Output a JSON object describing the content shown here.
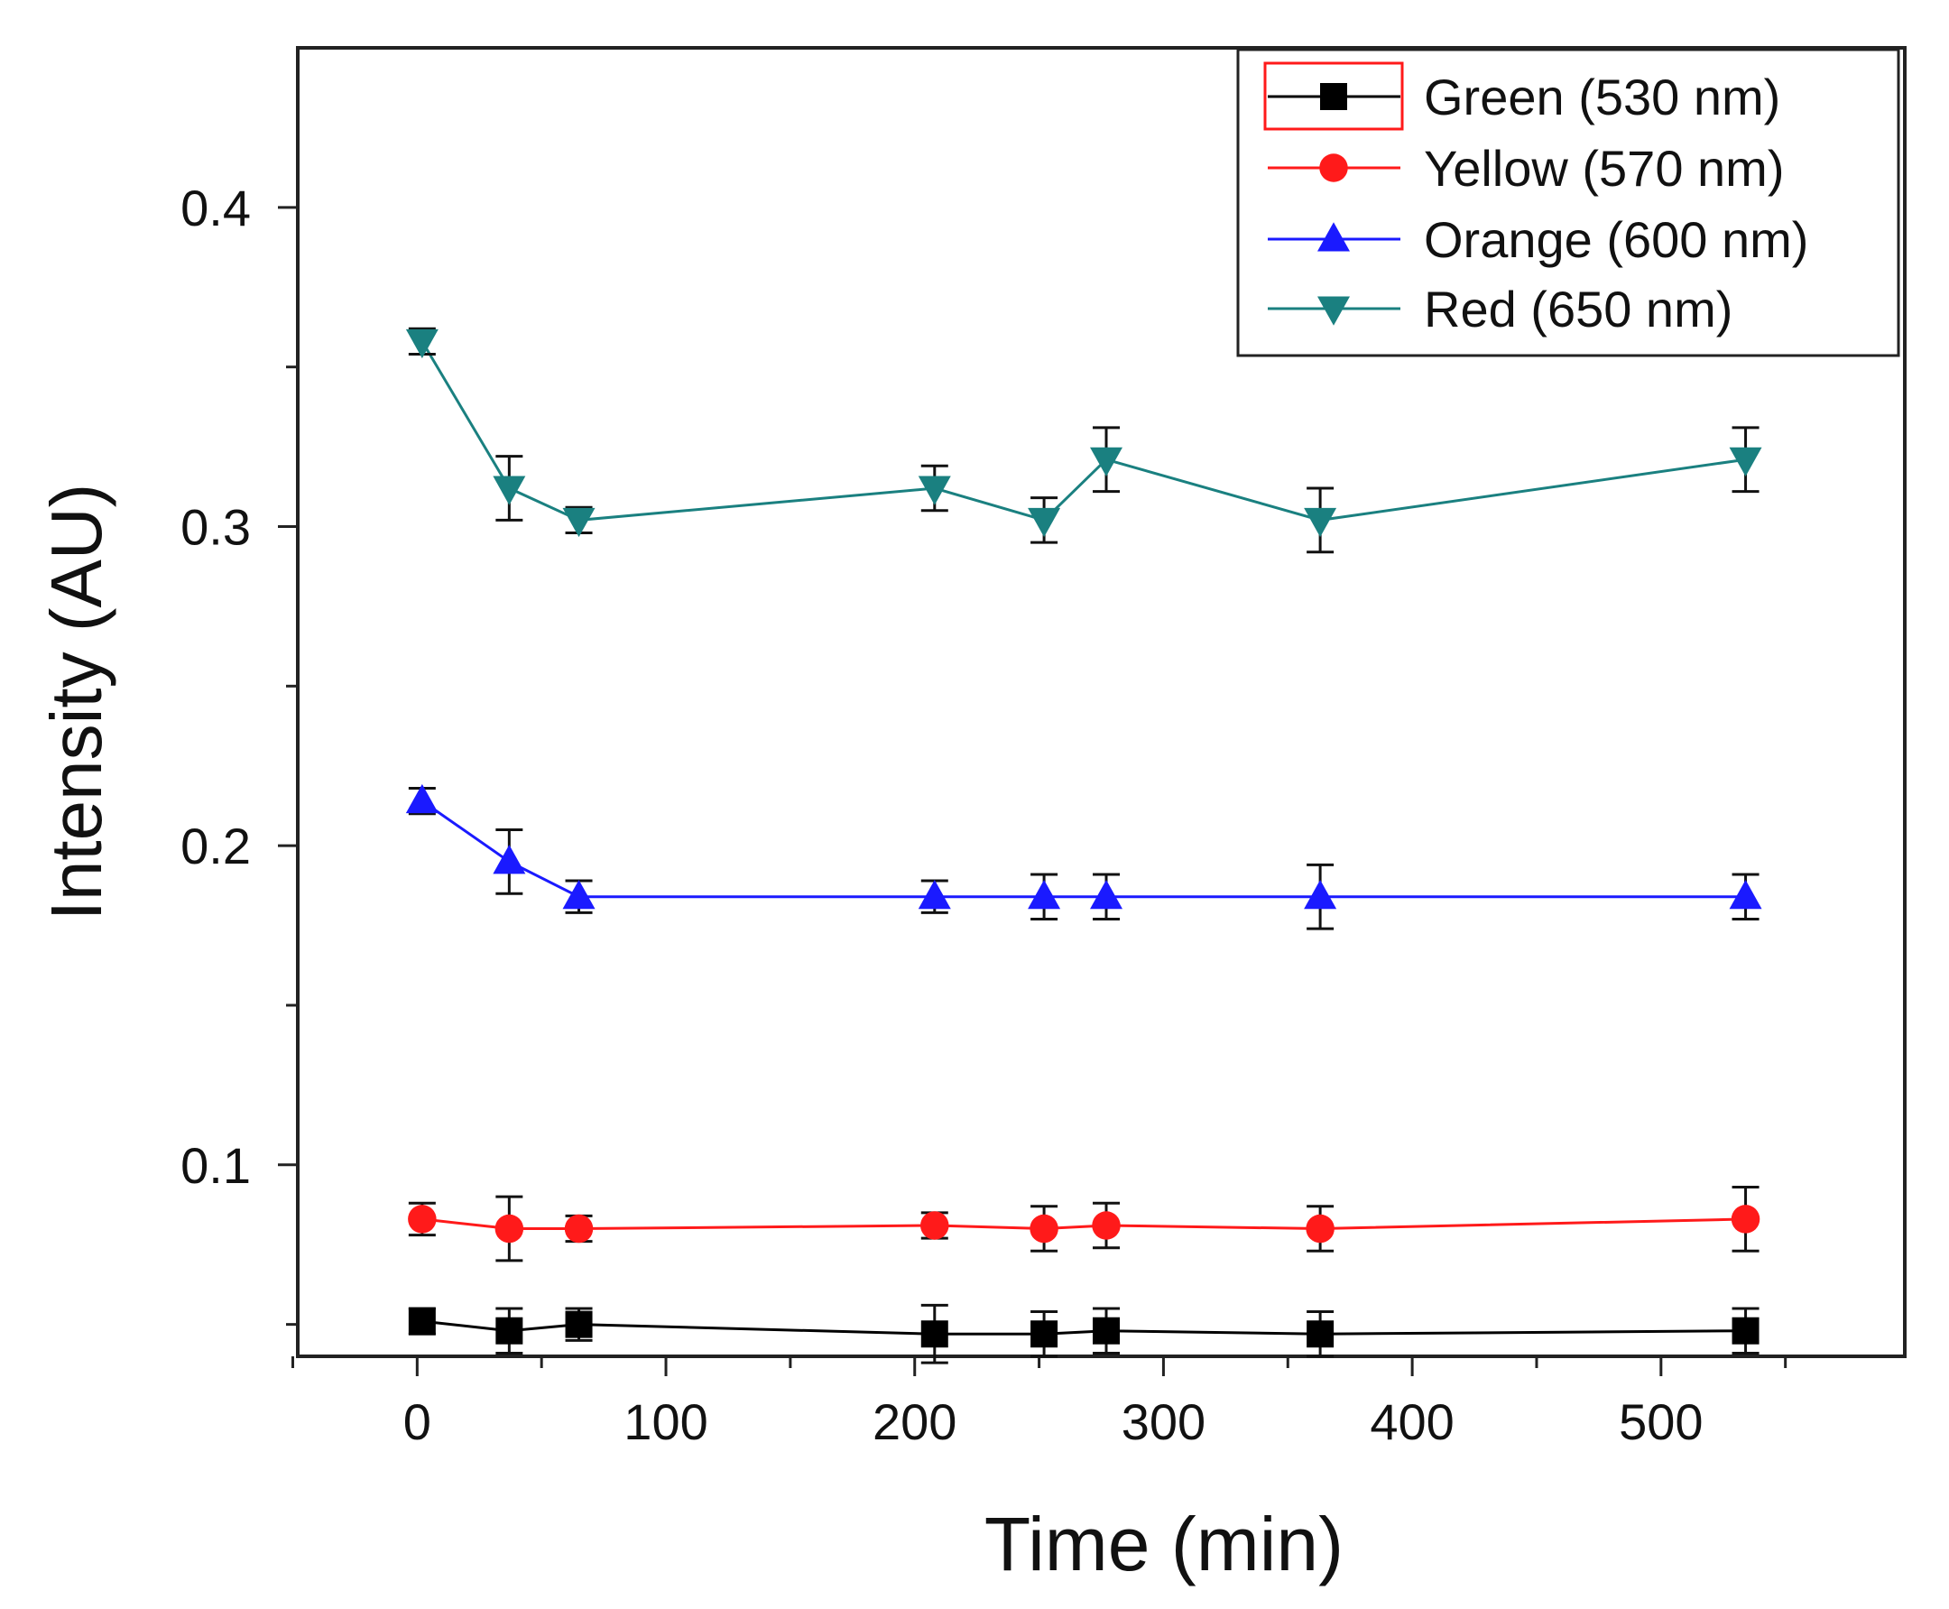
{
  "chart_data": {
    "type": "line",
    "title": "",
    "xlabel": "Time (min)",
    "ylabel": "Intensity (AU)",
    "xlim": [
      -48,
      598
    ],
    "ylim": [
      0.04,
      0.45
    ],
    "xticks": [
      0,
      100,
      200,
      300,
      400,
      500
    ],
    "xtick_labels": [
      "0",
      "100",
      "200",
      "300",
      "400",
      "500"
    ],
    "xminor_ticks": [
      -50,
      50,
      150,
      250,
      350,
      450,
      550
    ],
    "yticks": [
      0.1,
      0.2,
      0.3,
      0.4
    ],
    "ytick_labels": [
      "0.1",
      "0.2",
      "0.3",
      "0.4"
    ],
    "yminor_ticks": [
      0.05,
      0.15,
      0.25,
      0.35
    ],
    "legend_position": "top-right",
    "x": [
      2,
      37,
      65,
      208,
      252,
      277,
      363,
      534
    ],
    "series": [
      {
        "name": "Green (530 nm)",
        "color": "#000000",
        "marker": "square",
        "values": [
          0.051,
          0.048,
          0.05,
          0.047,
          0.047,
          0.048,
          0.047,
          0.048
        ],
        "errors": [
          0.004,
          0.007,
          0.005,
          0.009,
          0.007,
          0.007,
          0.007,
          0.007
        ]
      },
      {
        "name": "Yellow (570 nm)",
        "color": "#ff1a1a",
        "marker": "circle",
        "values": [
          0.083,
          0.08,
          0.08,
          0.081,
          0.08,
          0.081,
          0.08,
          0.083
        ],
        "errors": [
          0.005,
          0.01,
          0.004,
          0.004,
          0.007,
          0.007,
          0.007,
          0.01
        ]
      },
      {
        "name": "Orange (600 nm)",
        "color": "#1a1aff",
        "marker": "triangle-up",
        "values": [
          0.214,
          0.195,
          0.184,
          0.184,
          0.184,
          0.184,
          0.184,
          0.184
        ],
        "errors": [
          0.004,
          0.01,
          0.005,
          0.005,
          0.007,
          0.007,
          0.01,
          0.007
        ]
      },
      {
        "name": "Red (650 nm)",
        "color": "#1a8080",
        "marker": "triangle-down",
        "values": [
          0.358,
          0.312,
          0.302,
          0.312,
          0.302,
          0.321,
          0.302,
          0.321
        ],
        "errors": [
          0.004,
          0.01,
          0.004,
          0.007,
          0.007,
          0.01,
          0.01,
          0.01
        ]
      }
    ]
  }
}
